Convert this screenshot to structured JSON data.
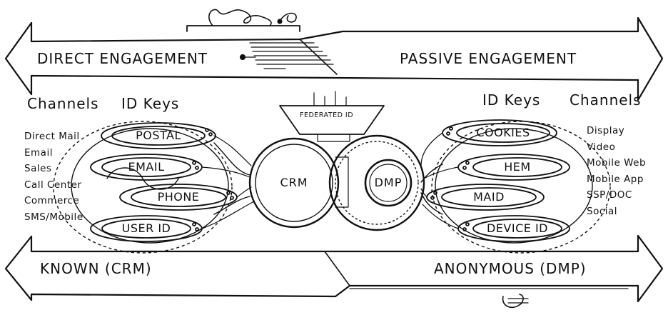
{
  "banners": {
    "top_left": "DIRECT ENGAGEMENT",
    "top_right": "PASSIVE ENGAGEMENT",
    "bottom_left": "KNOWN (CRM)",
    "bottom_right": "ANONYMOUS (DMP)"
  },
  "left": {
    "channels_heading": "Channels",
    "id_keys_heading": "ID Keys",
    "channels": [
      "Direct Mail",
      "Email",
      "Sales",
      "Call Center",
      "Commerce",
      "SMS/Mobile"
    ],
    "id_keys": [
      "POSTAL",
      "EMAIL",
      "PHONE",
      "USER ID"
    ]
  },
  "right": {
    "id_keys_heading": "ID Keys",
    "channels_heading": "Channels",
    "channels": [
      "Display",
      "Video",
      "Mobile Web",
      "Mobile App",
      "SSP/DOC",
      "Social"
    ],
    "id_keys": [
      "COOKIES",
      "HEM",
      "MAID",
      "DEVICE ID"
    ]
  },
  "center": {
    "federated_label": "FEDERATED ID",
    "crm_label": "CRM",
    "dmp_label": "DMP"
  }
}
